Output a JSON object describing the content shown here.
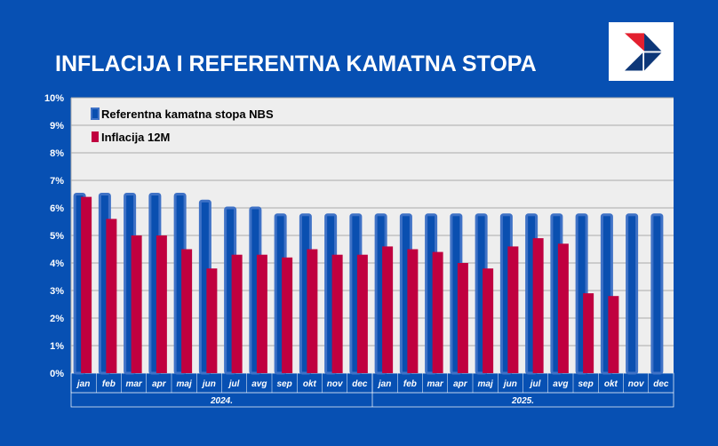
{
  "title": "INFLACIJA I REFERENTNA KAMATNA STOPA",
  "colors": {
    "background": "#0750b3",
    "policy_rate": "#0a4fb0",
    "policy_rate_border": "#3f72c6",
    "inflation": "#c0003f",
    "plot_bg": "#eeeeee"
  },
  "chart_data": {
    "type": "bar",
    "title": "INFLACIJA I REFERENTNA KAMATNA STOPA",
    "categories": [
      "jan",
      "feb",
      "mar",
      "apr",
      "maj",
      "jun",
      "jul",
      "avg",
      "sep",
      "okt",
      "nov",
      "dec",
      "jan",
      "feb",
      "mar",
      "apr",
      "maj",
      "jun",
      "jul",
      "avg",
      "sep",
      "okt",
      "nov",
      "dec"
    ],
    "groups": [
      {
        "label": "2024.",
        "count": 12
      },
      {
        "label": "2025.",
        "count": 12
      }
    ],
    "series": [
      {
        "name": "Referentna kamatna stopa NBS",
        "values": [
          6.5,
          6.5,
          6.5,
          6.5,
          6.5,
          6.25,
          6.0,
          6.0,
          5.75,
          5.75,
          5.75,
          5.75,
          5.75,
          5.75,
          5.75,
          5.75,
          5.75,
          5.75,
          5.75,
          5.75,
          5.75,
          5.75,
          5.75,
          5.75
        ]
      },
      {
        "name": "Inflacija 12M",
        "values": [
          6.4,
          5.6,
          5.0,
          5.0,
          4.5,
          3.8,
          4.3,
          4.3,
          4.2,
          4.5,
          4.3,
          4.3,
          4.6,
          4.5,
          4.4,
          4.0,
          3.8,
          4.6,
          4.9,
          4.7,
          2.9,
          2.8,
          null,
          null
        ]
      }
    ],
    "ylim": [
      0,
      10
    ],
    "yticks": [
      "0%",
      "1%",
      "2%",
      "3%",
      "4%",
      "5%",
      "6%",
      "7%",
      "8%",
      "9%",
      "10%"
    ],
    "grid": true,
    "legend": "top-left"
  }
}
